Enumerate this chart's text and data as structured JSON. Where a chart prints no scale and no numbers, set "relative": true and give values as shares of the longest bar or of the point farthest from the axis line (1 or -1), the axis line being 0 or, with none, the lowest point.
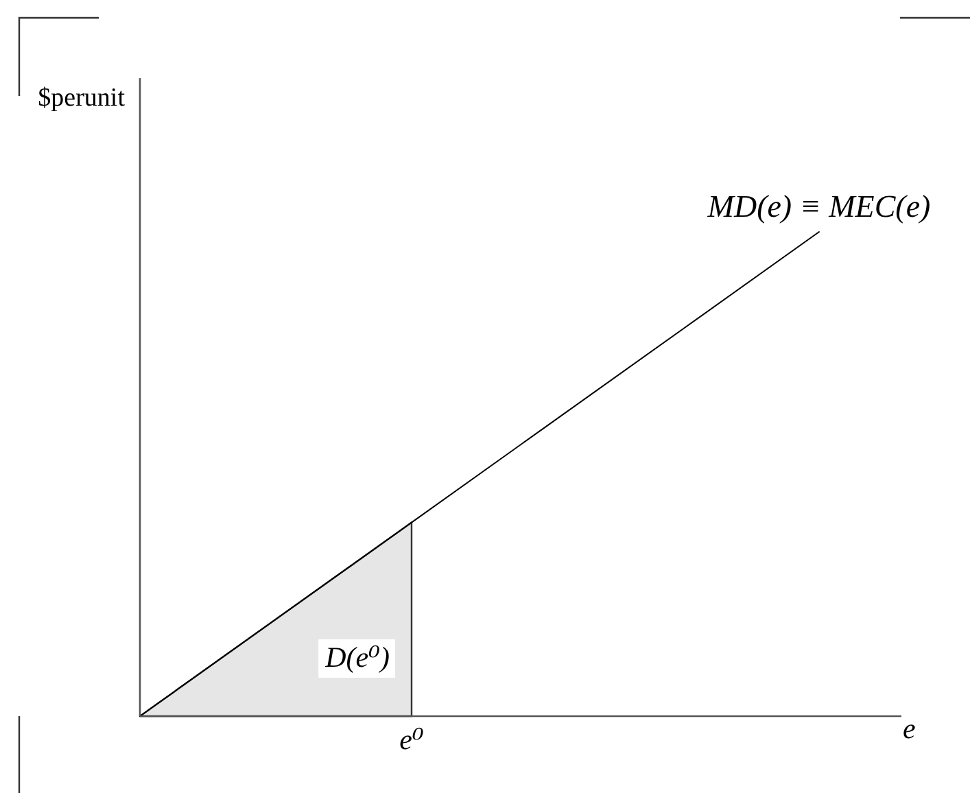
{
  "chart_data": {
    "type": "line",
    "relative": true,
    "categories": [
      null,
      null,
      null,
      null,
      null,
      null
    ],
    "xlabel": "e",
    "ylabel": "$perunit",
    "annotations": [
      "e⁰"
    ],
    "series": [
      {
        "name": "MD(e) ≡ MEC(e)",
        "color": "#000000",
        "values": [
          0,
          0.2,
          0.4,
          0.6,
          0.8,
          1
        ]
      },
      {
        "type": "area",
        "name": "D(e⁰)",
        "color": "#e6e6e6",
        "values": [
          0,
          0.2,
          0.4,
          null,
          null,
          null
        ]
      }
    ]
  }
}
